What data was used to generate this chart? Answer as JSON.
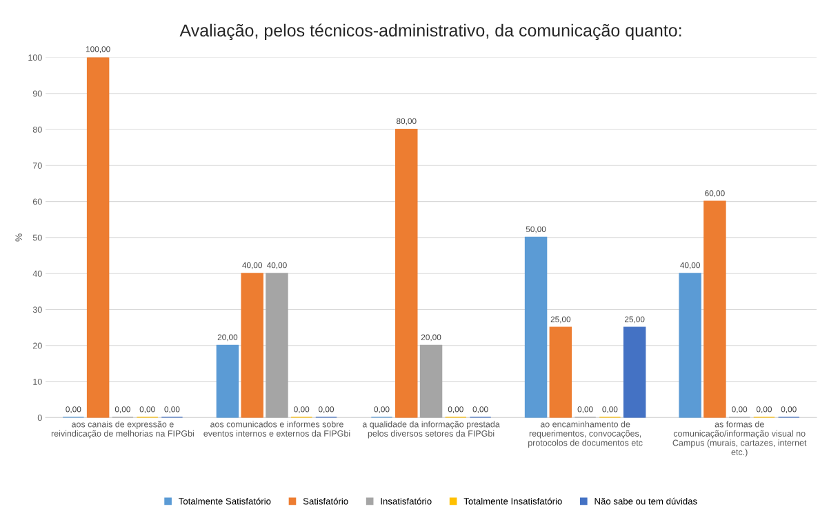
{
  "chart_data": {
    "type": "bar",
    "title": "Avaliação, pelos técnicos-administrativo, da comunicação quanto:",
    "ylabel": "%",
    "categories": [
      "aos canais de expressão e\nreivindicação de melhorias na FIPGbi",
      "aos comunicados e informes sobre\neventos internos e externos da FIPGbi",
      "a qualidade da informação prestada\npelos diversos setores da FIPGbi",
      "ao encaminhamento de\nrequerimentos, convocações,\nprotocolos de documentos etc",
      "as formas de\ncomunicação/informação visual no\nCampus (murais, cartazes, internet\netc.)"
    ],
    "series": [
      {
        "name": "Totalmente Satisfatório",
        "color": "#5b9bd5",
        "values": [
          0,
          20,
          0,
          50,
          40
        ],
        "value_labels": [
          "0,00",
          "20,00",
          "0,00",
          "50,00",
          "40,00"
        ]
      },
      {
        "name": "Satisfatório",
        "color": "#ed7d31",
        "values": [
          100,
          40,
          80,
          25,
          60
        ],
        "value_labels": [
          "100,00",
          "40,00",
          "80,00",
          "25,00",
          "60,00"
        ]
      },
      {
        "name": "Insatisfatório",
        "color": "#a5a5a5",
        "values": [
          0,
          40,
          20,
          0,
          0
        ],
        "value_labels": [
          "0,00",
          "40,00",
          "20,00",
          "0,00",
          "0,00"
        ]
      },
      {
        "name": "Totalmente Insatisfatório",
        "color": "#ffc000",
        "values": [
          0,
          0,
          0,
          0,
          0
        ],
        "value_labels": [
          "0,00",
          "0,00",
          "0,00",
          "0,00",
          "0,00"
        ]
      },
      {
        "name": "Não sabe ou tem dúvidas",
        "color": "#4472c4",
        "values": [
          0,
          0,
          0,
          25,
          0
        ],
        "value_labels": [
          "0,00",
          "0,00",
          "0,00",
          "25,00",
          "0,00"
        ]
      }
    ],
    "ylim": [
      0,
      100
    ],
    "yticks": [
      0,
      10,
      20,
      30,
      40,
      50,
      60,
      70,
      80,
      90,
      100
    ],
    "grid": "y",
    "legend": "bottom"
  }
}
